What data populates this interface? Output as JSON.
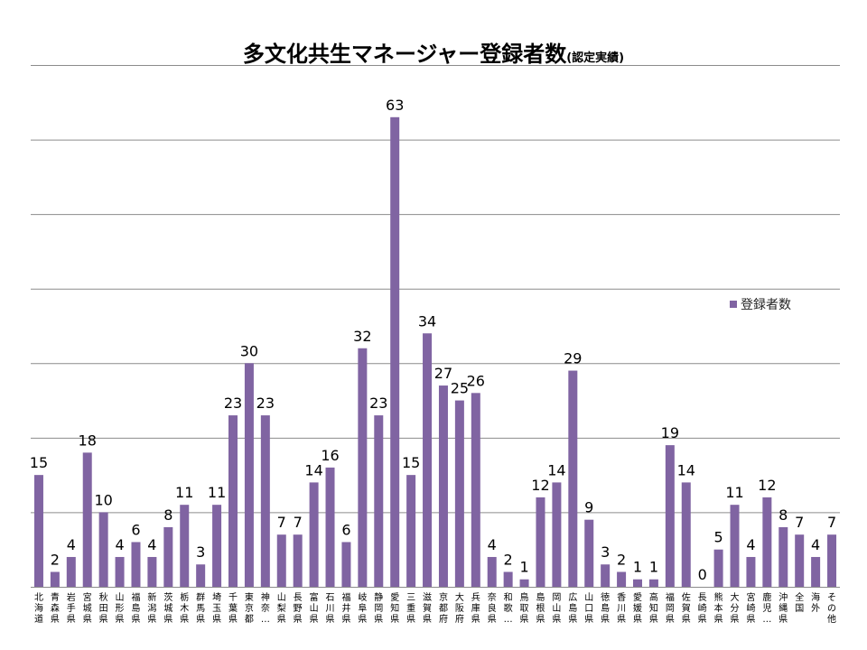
{
  "chart_data": {
    "type": "bar",
    "title": "多文化共生マネージャー登録者数",
    "subtitle": "(認定実績)",
    "xlabel": "",
    "ylabel": "",
    "ylim": [
      0,
      70
    ],
    "grid": true,
    "legend_position": "right",
    "bar_color": "#8064a2",
    "categories": [
      "北海道",
      "青森県",
      "岩手県",
      "宮城県",
      "秋田県",
      "山形県",
      "福島県",
      "新潟県",
      "茨城県",
      "栃木県",
      "群馬県",
      "埼玉県",
      "千葉県",
      "東京都",
      "神奈…",
      "山梨県",
      "長野県",
      "富山県",
      "石川県",
      "福井県",
      "岐阜県",
      "静岡県",
      "愛知県",
      "三重県",
      "滋賀県",
      "京都府",
      "大阪府",
      "兵庫県",
      "奈良県",
      "和歌…",
      "鳥取県",
      "島根県",
      "岡山県",
      "広島県",
      "山口県",
      "徳島県",
      "香川県",
      "愛媛県",
      "高知県",
      "福岡県",
      "佐賀県",
      "長崎県",
      "熊本県",
      "大分県",
      "宮崎県",
      "鹿児…",
      "沖縄県",
      "全国",
      "海外",
      "その他"
    ],
    "series": [
      {
        "name": "登録者数",
        "values": [
          15,
          2,
          4,
          18,
          10,
          4,
          6,
          4,
          8,
          11,
          3,
          11,
          23,
          30,
          23,
          7,
          7,
          14,
          16,
          6,
          32,
          23,
          63,
          15,
          34,
          27,
          25,
          26,
          4,
          2,
          1,
          12,
          14,
          29,
          9,
          3,
          2,
          1,
          1,
          19,
          14,
          0,
          5,
          11,
          4,
          12,
          8,
          7,
          4,
          7
        ]
      }
    ]
  }
}
